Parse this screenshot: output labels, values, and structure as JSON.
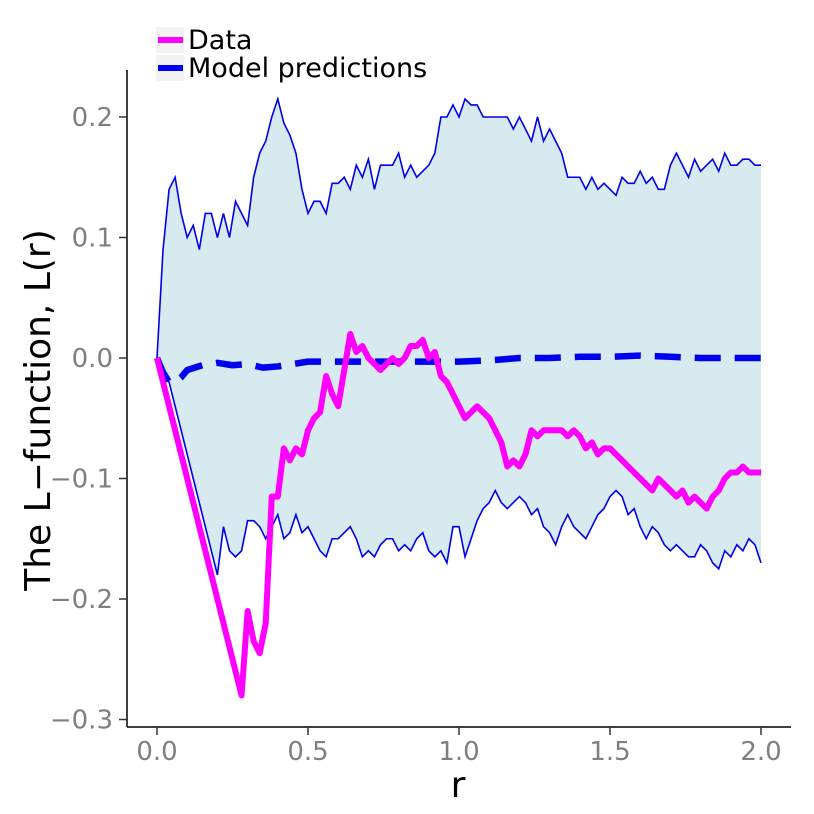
{
  "chart_data": {
    "type": "line",
    "xlabel": "r",
    "ylabel": "The L−function, L(r)",
    "xlim": [
      -0.1,
      2.1
    ],
    "ylim": [
      -0.3,
      0.22
    ],
    "x_ticks": [
      0.0,
      0.5,
      1.0,
      1.5,
      2.0
    ],
    "x_tick_labels": [
      "0.0",
      "0.5",
      "1.0",
      "1.5",
      "2.0"
    ],
    "y_ticks": [
      -0.3,
      -0.2,
      -0.1,
      0.0,
      0.1,
      0.2
    ],
    "y_tick_labels": [
      "−0.3",
      "−0.2",
      "−0.1",
      "0.0",
      "0.1",
      "0.2"
    ],
    "grid": false,
    "legend": {
      "position": "top-left",
      "entries": [
        {
          "label": "Data",
          "color": "#ff00ff",
          "style": "solid"
        },
        {
          "label": "Model predictions",
          "color": "#0000ee",
          "style": "dashed"
        }
      ]
    },
    "band": {
      "fill_color": "#d6eaf0",
      "line_color": "#0000ee",
      "x": [
        0.0,
        0.02,
        0.04,
        0.06,
        0.08,
        0.1,
        0.12,
        0.14,
        0.16,
        0.18,
        0.2,
        0.22,
        0.24,
        0.26,
        0.28,
        0.3,
        0.32,
        0.34,
        0.36,
        0.38,
        0.4,
        0.42,
        0.44,
        0.46,
        0.48,
        0.5,
        0.52,
        0.54,
        0.56,
        0.58,
        0.6,
        0.62,
        0.64,
        0.66,
        0.68,
        0.7,
        0.72,
        0.74,
        0.76,
        0.78,
        0.8,
        0.82,
        0.84,
        0.86,
        0.88,
        0.9,
        0.92,
        0.94,
        0.96,
        0.98,
        1.0,
        1.02,
        1.04,
        1.06,
        1.08,
        1.1,
        1.12,
        1.14,
        1.16,
        1.18,
        1.2,
        1.22,
        1.24,
        1.26,
        1.28,
        1.3,
        1.32,
        1.34,
        1.36,
        1.38,
        1.4,
        1.42,
        1.44,
        1.46,
        1.48,
        1.5,
        1.52,
        1.54,
        1.56,
        1.58,
        1.6,
        1.62,
        1.64,
        1.66,
        1.68,
        1.7,
        1.72,
        1.74,
        1.76,
        1.78,
        1.8,
        1.82,
        1.84,
        1.86,
        1.88,
        1.9,
        1.92,
        1.94,
        1.96,
        1.98,
        2.0
      ],
      "upper": [
        0.0,
        0.09,
        0.14,
        0.15,
        0.12,
        0.1,
        0.11,
        0.09,
        0.12,
        0.12,
        0.1,
        0.12,
        0.1,
        0.13,
        0.12,
        0.11,
        0.15,
        0.17,
        0.18,
        0.2,
        0.215,
        0.195,
        0.185,
        0.17,
        0.14,
        0.12,
        0.13,
        0.13,
        0.12,
        0.145,
        0.145,
        0.15,
        0.14,
        0.16,
        0.15,
        0.165,
        0.14,
        0.16,
        0.16,
        0.16,
        0.17,
        0.15,
        0.16,
        0.15,
        0.155,
        0.16,
        0.17,
        0.2,
        0.2,
        0.21,
        0.2,
        0.215,
        0.21,
        0.21,
        0.2,
        0.2,
        0.2,
        0.2,
        0.2,
        0.19,
        0.2,
        0.19,
        0.18,
        0.2,
        0.18,
        0.19,
        0.18,
        0.17,
        0.15,
        0.15,
        0.15,
        0.14,
        0.15,
        0.14,
        0.145,
        0.14,
        0.135,
        0.15,
        0.145,
        0.145,
        0.155,
        0.145,
        0.15,
        0.14,
        0.14,
        0.16,
        0.17,
        0.16,
        0.15,
        0.165,
        0.155,
        0.16,
        0.165,
        0.155,
        0.17,
        0.16,
        0.16,
        0.165,
        0.165,
        0.16,
        0.16
      ],
      "lower": [
        0.0,
        -0.01,
        -0.02,
        -0.04,
        -0.06,
        -0.08,
        -0.1,
        -0.12,
        -0.14,
        -0.16,
        -0.18,
        -0.14,
        -0.16,
        -0.165,
        -0.16,
        -0.135,
        -0.135,
        -0.14,
        -0.15,
        -0.14,
        -0.13,
        -0.15,
        -0.145,
        -0.13,
        -0.145,
        -0.14,
        -0.15,
        -0.16,
        -0.165,
        -0.15,
        -0.15,
        -0.145,
        -0.14,
        -0.15,
        -0.165,
        -0.16,
        -0.165,
        -0.155,
        -0.15,
        -0.15,
        -0.16,
        -0.155,
        -0.16,
        -0.15,
        -0.145,
        -0.16,
        -0.165,
        -0.16,
        -0.17,
        -0.14,
        -0.14,
        -0.165,
        -0.15,
        -0.135,
        -0.125,
        -0.12,
        -0.11,
        -0.12,
        -0.125,
        -0.12,
        -0.115,
        -0.12,
        -0.13,
        -0.125,
        -0.14,
        -0.145,
        -0.155,
        -0.14,
        -0.13,
        -0.14,
        -0.145,
        -0.15,
        -0.14,
        -0.13,
        -0.125,
        -0.115,
        -0.11,
        -0.115,
        -0.13,
        -0.125,
        -0.14,
        -0.15,
        -0.14,
        -0.145,
        -0.155,
        -0.16,
        -0.155,
        -0.16,
        -0.165,
        -0.165,
        -0.155,
        -0.16,
        -0.17,
        -0.175,
        -0.16,
        -0.165,
        -0.155,
        -0.16,
        -0.15,
        -0.155,
        -0.17
      ]
    },
    "series": [
      {
        "name": "Data",
        "color": "#ff00ff",
        "style": "solid",
        "x": [
          0.0,
          0.28,
          0.3,
          0.32,
          0.34,
          0.36,
          0.38,
          0.4,
          0.42,
          0.44,
          0.46,
          0.48,
          0.5,
          0.52,
          0.54,
          0.56,
          0.58,
          0.6,
          0.62,
          0.64,
          0.66,
          0.68,
          0.7,
          0.72,
          0.74,
          0.76,
          0.78,
          0.8,
          0.82,
          0.84,
          0.86,
          0.88,
          0.9,
          0.92,
          0.94,
          0.96,
          0.98,
          1.0,
          1.02,
          1.04,
          1.06,
          1.08,
          1.1,
          1.12,
          1.14,
          1.16,
          1.18,
          1.2,
          1.22,
          1.24,
          1.26,
          1.28,
          1.3,
          1.32,
          1.34,
          1.36,
          1.38,
          1.4,
          1.42,
          1.44,
          1.46,
          1.48,
          1.5,
          1.52,
          1.54,
          1.56,
          1.58,
          1.6,
          1.62,
          1.64,
          1.66,
          1.68,
          1.7,
          1.72,
          1.74,
          1.76,
          1.78,
          1.8,
          1.82,
          1.84,
          1.86,
          1.88,
          1.9,
          1.92,
          1.94,
          1.96,
          1.98,
          2.0
        ],
        "y": [
          0.0,
          -0.28,
          -0.21,
          -0.235,
          -0.245,
          -0.22,
          -0.115,
          -0.115,
          -0.075,
          -0.085,
          -0.075,
          -0.08,
          -0.06,
          -0.05,
          -0.045,
          -0.015,
          -0.03,
          -0.04,
          -0.01,
          0.02,
          0.005,
          0.01,
          0.0,
          -0.005,
          -0.01,
          -0.005,
          0.0,
          -0.005,
          0.0,
          0.01,
          0.01,
          0.015,
          0.0,
          0.005,
          -0.015,
          -0.02,
          -0.03,
          -0.04,
          -0.05,
          -0.045,
          -0.04,
          -0.045,
          -0.05,
          -0.06,
          -0.07,
          -0.09,
          -0.085,
          -0.09,
          -0.08,
          -0.06,
          -0.065,
          -0.06,
          -0.06,
          -0.06,
          -0.06,
          -0.065,
          -0.06,
          -0.065,
          -0.075,
          -0.07,
          -0.08,
          -0.075,
          -0.075,
          -0.08,
          -0.085,
          -0.09,
          -0.095,
          -0.1,
          -0.105,
          -0.11,
          -0.1,
          -0.105,
          -0.11,
          -0.115,
          -0.11,
          -0.12,
          -0.115,
          -0.12,
          -0.125,
          -0.115,
          -0.11,
          -0.1,
          -0.095,
          -0.095,
          -0.09,
          -0.095,
          -0.095,
          -0.095
        ]
      },
      {
        "name": "Model predictions",
        "color": "#0000ee",
        "style": "dashed",
        "x": [
          0.0,
          0.02,
          0.04,
          0.06,
          0.08,
          0.1,
          0.15,
          0.2,
          0.25,
          0.3,
          0.35,
          0.4,
          0.45,
          0.5,
          0.6,
          0.7,
          0.8,
          0.9,
          1.0,
          1.1,
          1.2,
          1.3,
          1.4,
          1.5,
          1.6,
          1.7,
          1.8,
          1.9,
          2.0
        ],
        "y": [
          0.0,
          -0.012,
          -0.02,
          -0.02,
          -0.016,
          -0.01,
          -0.006,
          -0.004,
          -0.006,
          -0.005,
          -0.008,
          -0.007,
          -0.005,
          -0.003,
          -0.003,
          -0.003,
          -0.003,
          -0.003,
          -0.003,
          -0.002,
          0.0,
          0.0,
          0.001,
          0.001,
          0.002,
          0.001,
          0.0,
          0.0,
          0.0
        ]
      }
    ]
  }
}
